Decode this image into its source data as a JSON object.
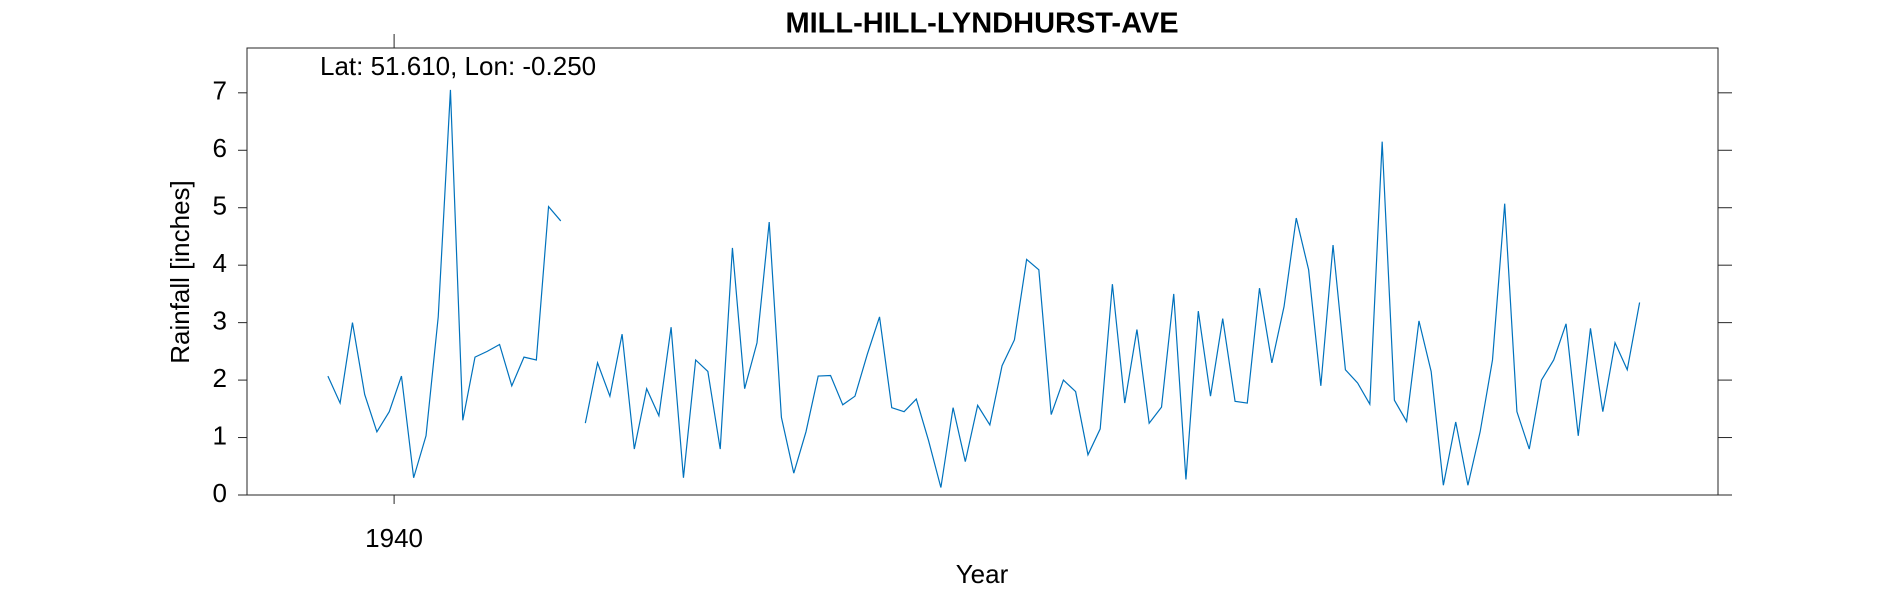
{
  "chart_data": {
    "type": "line",
    "title": "MILL-HILL-LYNDHURST-AVE",
    "annotation": "Lat: 51.610, Lon: -0.250",
    "x_label": "Year",
    "y_label": "Rainfall [inches]",
    "xlim": [
      1939,
      1949
    ],
    "xticks": [
      1940
    ],
    "ylim": [
      0,
      7.78
    ],
    "yticks": [
      0,
      1,
      2,
      3,
      4,
      5,
      6,
      7
    ],
    "x": [
      1939.55,
      1939.633,
      1939.717,
      1939.8,
      1939.883,
      1939.967,
      1940.05,
      1940.133,
      1940.217,
      1940.3,
      1940.383,
      1940.467,
      1940.55,
      1940.633,
      1940.717,
      1940.8,
      1940.883,
      1940.967,
      1941.05,
      1941.133,
      1941.217,
      1941.3,
      1941.383,
      1941.467,
      1941.55,
      1941.633,
      1941.717,
      1941.8,
      1941.883,
      1941.967,
      1942.05,
      1942.133,
      1942.217,
      1942.3,
      1942.383,
      1942.467,
      1942.55,
      1942.633,
      1942.717,
      1942.8,
      1942.883,
      1942.967,
      1943.05,
      1943.133,
      1943.217,
      1943.3,
      1943.383,
      1943.467,
      1943.55,
      1943.633,
      1943.717,
      1943.8,
      1943.883,
      1943.967,
      1944.05,
      1944.133,
      1944.217,
      1944.3,
      1944.383,
      1944.467,
      1944.55,
      1944.633,
      1944.717,
      1944.8,
      1944.883,
      1944.967,
      1945.05,
      1945.133,
      1945.217,
      1945.3,
      1945.383,
      1945.467,
      1945.55,
      1945.633,
      1945.717,
      1945.8,
      1945.883,
      1945.967,
      1946.05,
      1946.133,
      1946.217,
      1946.3,
      1946.383,
      1946.467,
      1946.55,
      1946.633,
      1946.717,
      1946.8,
      1946.883,
      1946.967,
      1947.05,
      1947.133,
      1947.217,
      1947.3,
      1947.383,
      1947.467,
      1947.55,
      1947.633,
      1947.717,
      1947.8,
      1947.883,
      1947.967,
      1948.05,
      1948.133,
      1948.217,
      1948.3,
      1948.383,
      1948.467
    ],
    "series": [
      {
        "color": "#0072bd",
        "values": [
          2.07,
          1.6,
          3.0,
          1.75,
          1.1,
          1.45,
          2.07,
          0.3,
          1.03,
          3.1,
          7.05,
          1.3,
          2.4,
          2.5,
          2.62,
          1.9,
          2.4,
          2.35,
          5.02,
          4.77,
          null,
          1.25,
          2.3,
          1.72,
          2.8,
          0.8,
          1.85,
          1.38,
          2.92,
          0.3,
          2.35,
          2.15,
          0.8,
          4.3,
          1.85,
          2.65,
          4.75,
          1.35,
          0.38,
          1.1,
          2.07,
          2.08,
          1.57,
          1.72,
          2.45,
          3.1,
          1.52,
          1.45,
          1.67,
          0.95,
          0.13,
          1.52,
          0.58,
          1.56,
          1.22,
          2.25,
          2.7,
          4.1,
          3.92,
          1.4,
          2.0,
          1.8,
          0.7,
          1.15,
          3.67,
          1.6,
          2.88,
          1.25,
          1.53,
          3.5,
          0.27,
          3.2,
          1.72,
          3.07,
          1.63,
          1.6,
          3.6,
          2.3,
          3.28,
          4.82,
          3.92,
          1.9,
          4.35,
          2.18,
          1.95,
          1.58,
          6.15,
          1.65,
          1.28,
          3.03,
          2.15,
          0.17,
          1.27,
          0.17,
          1.1,
          2.35,
          5.07,
          1.45,
          0.8,
          2.0,
          2.35,
          2.98,
          1.03,
          2.9,
          1.45,
          2.65,
          2.18,
          3.35
        ]
      }
    ]
  }
}
